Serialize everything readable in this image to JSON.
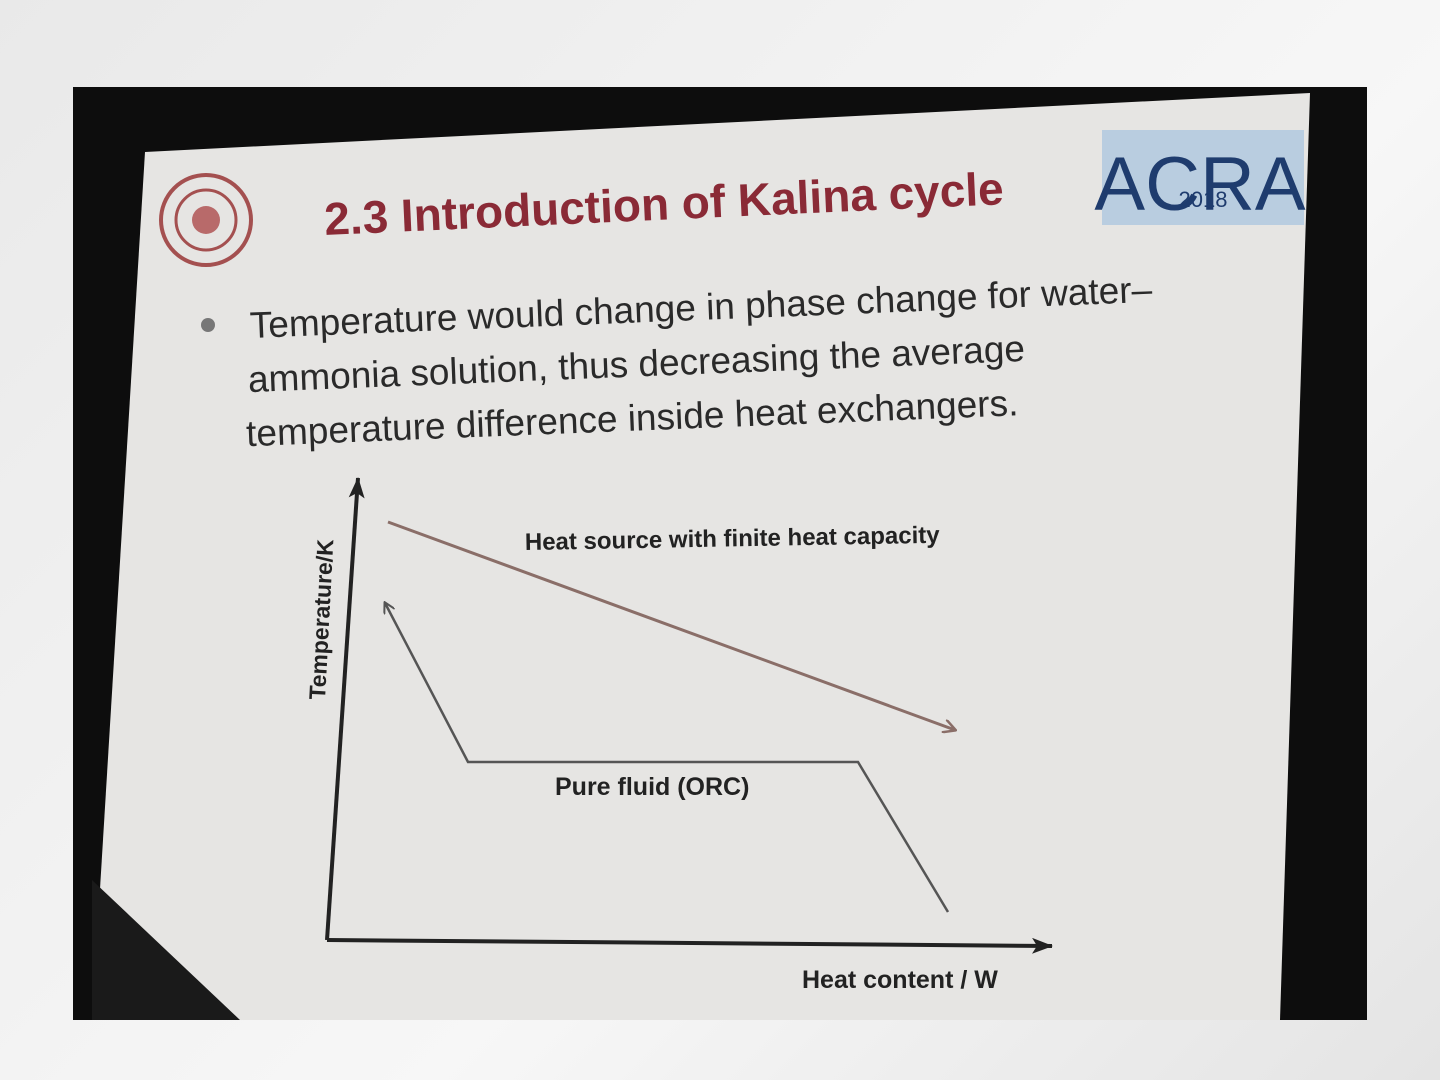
{
  "slide": {
    "title": "2.3 Introduction of Kalina cycle",
    "logo": {
      "name": "ACRA",
      "year": "2018"
    },
    "bullet_lines": [
      "Temperature would change in phase change for water–",
      "ammonia solution, thus decreasing the average",
      "temperature difference inside heat exchangers."
    ],
    "diagram": {
      "y_axis_label": "Temperature/K",
      "x_axis_label": "Heat content / W",
      "heat_source_label": "Heat source with finite heat capacity",
      "pure_fluid_label": "Pure fluid (ORC)"
    }
  }
}
